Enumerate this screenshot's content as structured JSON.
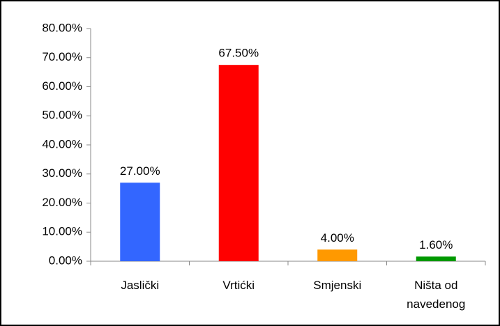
{
  "chart_data": {
    "type": "bar",
    "categories": [
      "Jaslički",
      "Vrtićki",
      "Smjenski",
      "Ništa od navedenog"
    ],
    "values": [
      27,
      67.5,
      4,
      1.6
    ],
    "value_labels": [
      "27.00%",
      "67.50%",
      "4.00%",
      "1.60%"
    ],
    "colors": [
      "#3366ff",
      "#ff0000",
      "#ff9900",
      "#009900"
    ],
    "ylim": [
      0,
      80
    ],
    "yticks": [
      {
        "value": 0,
        "label": "0.00%"
      },
      {
        "value": 10,
        "label": "10.00%"
      },
      {
        "value": 20,
        "label": "20.00%"
      },
      {
        "value": 30,
        "label": "30.00%"
      },
      {
        "value": 40,
        "label": "40.00%"
      },
      {
        "value": 50,
        "label": "50.00%"
      },
      {
        "value": 60,
        "label": "60.00%"
      },
      {
        "value": 70,
        "label": "70.00%"
      },
      {
        "value": 80,
        "label": "80.00%"
      }
    ],
    "grid": false
  }
}
